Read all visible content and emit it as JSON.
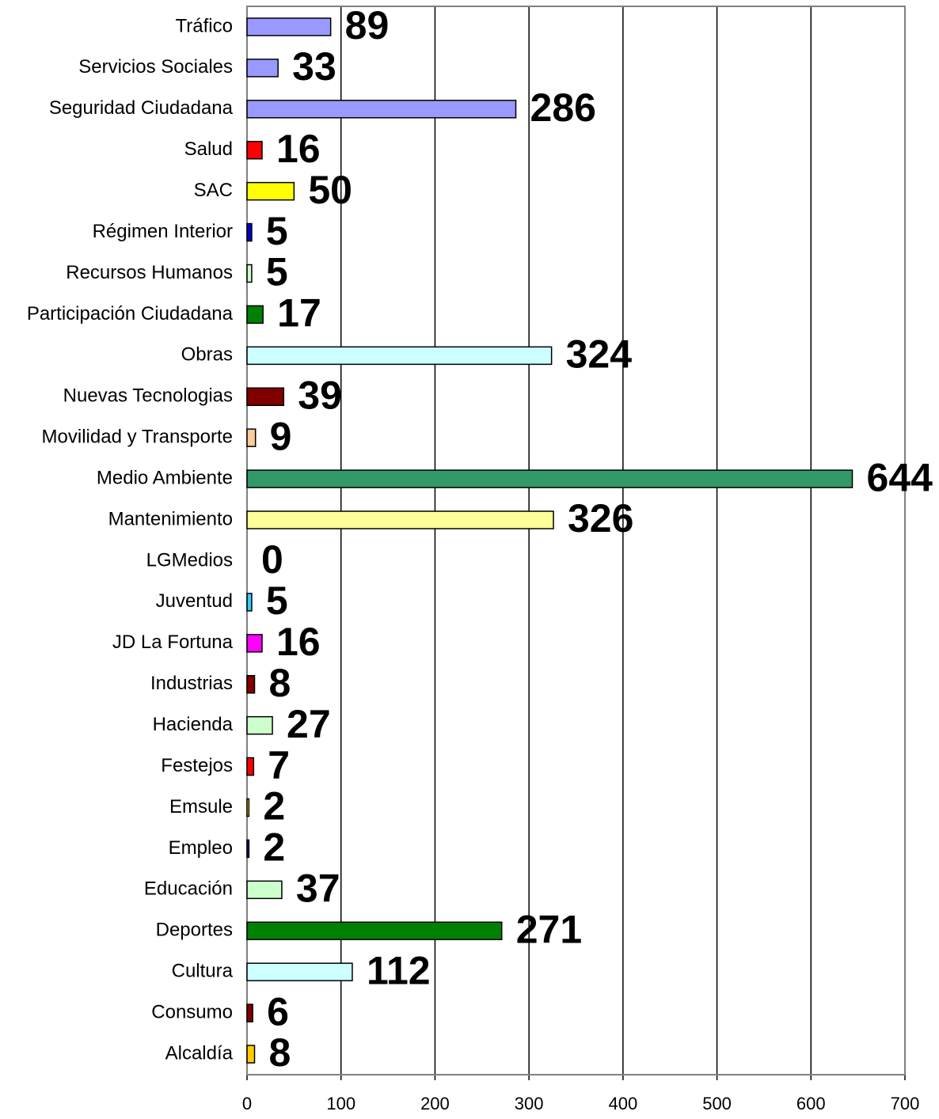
{
  "chart_data": {
    "type": "barh",
    "categories": [
      "Tráfico",
      "Servicios Sociales",
      "Seguridad Ciudadana",
      "Salud",
      "SAC",
      "Régimen Interior",
      "Recursos Humanos",
      "Participación Ciudadana",
      "Obras",
      "Nuevas Tecnologias",
      "Movilidad y Transporte",
      "Medio Ambiente",
      "Mantenimiento",
      "LGMedios",
      "Juventud",
      "JD La Fortuna",
      "Industrias",
      "Hacienda",
      "Festejos",
      "Emsule",
      "Empleo",
      "Educación",
      "Deportes",
      "Cultura",
      "Consumo",
      "Alcaldía"
    ],
    "values": [
      89,
      33,
      286,
      16,
      50,
      5,
      5,
      17,
      324,
      39,
      9,
      644,
      326,
      0,
      5,
      16,
      8,
      27,
      7,
      2,
      2,
      37,
      271,
      112,
      6,
      8
    ],
    "colors": [
      "#9999ff",
      "#9999ff",
      "#9999ff",
      "#ff0000",
      "#ffff00",
      "#0000cc",
      "#ccffcc",
      "#008000",
      "#ccffff",
      "#800000",
      "#ffcc99",
      "#339966",
      "#ffff99",
      "#ffffff",
      "#33ccff",
      "#ff00ff",
      "#800000",
      "#ccffcc",
      "#ff0000",
      "#ffff00",
      "#0000cc",
      "#ccffcc",
      "#008000",
      "#ccffff",
      "#800000",
      "#ffcc00"
    ],
    "xlim": [
      0,
      700
    ],
    "xticks": [
      0,
      100,
      200,
      300,
      400,
      500,
      600,
      700
    ],
    "grid": true
  }
}
